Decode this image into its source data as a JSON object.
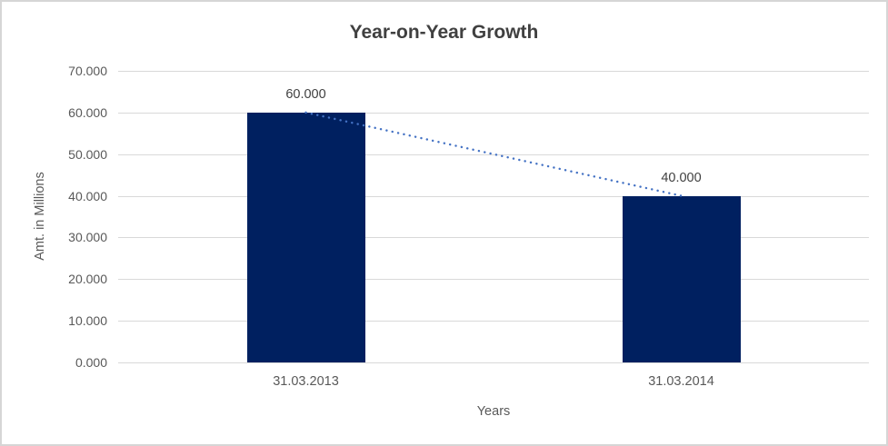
{
  "frame": {
    "background": "#ffffff",
    "border_color": "#d6d6d6"
  },
  "chart_data": {
    "type": "bar",
    "title": "Year-on-Year Growth",
    "xlabel": "Years",
    "ylabel": "Amt. in Millions",
    "categories": [
      "31.03.2013",
      "31.03.2014"
    ],
    "values": [
      60,
      40
    ],
    "data_labels": [
      "60.000",
      "40.000"
    ],
    "yticks": [
      0,
      10,
      20,
      30,
      40,
      50,
      60,
      70
    ],
    "ytick_labels": [
      "0.000",
      "10.000",
      "20.000",
      "30.000",
      "40.000",
      "50.000",
      "60.000",
      "70.000"
    ],
    "ylim": [
      0,
      70
    ],
    "grid": true,
    "legend": "none",
    "trendline": {
      "style": "dotted",
      "from_value": 60,
      "to_value": 40
    },
    "colors": {
      "bar": "#002060",
      "trendline": "#4472c4",
      "gridline": "#d9d9d9",
      "title_text": "#404040",
      "axis_text": "#595959"
    }
  }
}
